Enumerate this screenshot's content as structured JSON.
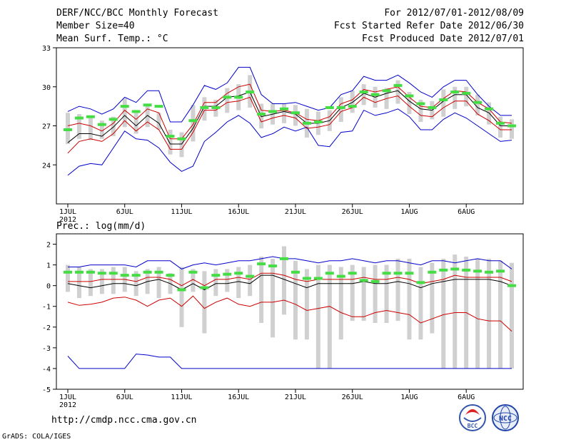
{
  "header": {
    "title": "DERF/NCC/BCC Monthly Forecast",
    "member_size": "Member Size=40",
    "variable": "Mean Surf. Temp.: °C",
    "period": "For 2012/07/01-2012/08/09",
    "started": "Fcst Started Refer Date 2012/06/30",
    "produced": "Fcst Produced Date 2012/07/01"
  },
  "footer": {
    "url": "http://cmdp.ncc.cma.gov.cn",
    "credit": "GrADS: COLA/IGES",
    "logo_bcc": "BCC",
    "logo_ncc": "NCC"
  },
  "colors": {
    "ensemble": "#0000cc",
    "spread": "#cc0000",
    "mean": "#000000",
    "box": "#d0d0d0",
    "obs": "#44dd44"
  },
  "chart_data": [
    {
      "type": "line",
      "title": "Mean Surf. Temp.: °C",
      "x_ticks": [
        "1JUL",
        "6JUL",
        "11JUL",
        "16JUL",
        "21JUL",
        "26JUL",
        "1AUG",
        "6AUG"
      ],
      "x_year": "2012",
      "ylim": [
        21,
        33
      ],
      "y_ticks": [
        "33",
        "30",
        "27",
        "24"
      ],
      "series": [
        {
          "name": "ensemble max",
          "values": [
            23.2,
            23.9,
            24.1,
            24.0,
            25.3,
            26.6,
            26.0,
            25.9,
            25.3,
            24.2,
            23.5,
            23.9,
            25.8,
            26.5,
            27.3,
            27.8,
            27.2,
            26.1,
            26.4,
            26.9,
            26.6,
            26.9,
            25.5,
            25.4,
            26.5,
            26.6,
            28.2,
            27.8,
            28.0,
            28.3,
            27.7,
            26.7,
            26.7,
            27.5,
            28.0,
            27.6,
            27.0,
            26.4,
            25.8,
            25.9
          ]
        },
        {
          "name": "ensemble max upper",
          "values": [
            28.1,
            28.5,
            28.3,
            27.9,
            28.3,
            29.2,
            28.8,
            29.7,
            29.7,
            27.3,
            27.3,
            28.6,
            30.1,
            29.8,
            30.3,
            31.5,
            31.5,
            29.4,
            28.7,
            28.7,
            28.8,
            28.5,
            28.2,
            28.4,
            29.4,
            29.7,
            30.8,
            30.5,
            30.5,
            30.9,
            30.3,
            29.6,
            29.2,
            30.0,
            30.5,
            30.5,
            29.4,
            28.5,
            27.8,
            27.8
          ]
        },
        {
          "name": "spread high",
          "values": [
            27.0,
            27.2,
            27.0,
            26.6,
            27.2,
            28.2,
            27.5,
            28.3,
            28.0,
            26.0,
            26.0,
            27.1,
            28.8,
            28.8,
            29.5,
            30.0,
            30.2,
            28.2,
            28.1,
            28.2,
            28.0,
            27.5,
            27.4,
            27.7,
            28.7,
            29.0,
            29.8,
            29.6,
            29.8,
            30.0,
            29.2,
            28.5,
            28.4,
            29.1,
            29.7,
            29.6,
            28.8,
            28.3,
            27.3,
            27.2
          ]
        },
        {
          "name": "ensemble mean",
          "values": [
            25.7,
            26.4,
            26.4,
            26.2,
            26.9,
            27.8,
            27.0,
            27.8,
            27.2,
            25.6,
            25.6,
            26.8,
            28.5,
            28.5,
            29.2,
            29.3,
            29.6,
            27.7,
            27.9,
            28.1,
            27.9,
            27.2,
            27.2,
            27.4,
            28.4,
            28.8,
            29.5,
            29.2,
            29.5,
            29.7,
            28.9,
            28.3,
            28.2,
            28.9,
            29.4,
            29.4,
            28.4,
            28.0,
            27.0,
            27.0
          ]
        },
        {
          "name": "spread low",
          "values": [
            24.9,
            25.8,
            26.0,
            25.8,
            26.4,
            27.4,
            26.6,
            27.3,
            26.7,
            25.2,
            25.2,
            26.5,
            28.2,
            28.2,
            28.8,
            28.9,
            29.2,
            27.3,
            27.6,
            27.8,
            27.6,
            26.8,
            26.9,
            27.1,
            28.1,
            28.4,
            29.2,
            28.8,
            29.1,
            29.3,
            28.5,
            27.8,
            27.7,
            28.4,
            28.9,
            28.9,
            27.9,
            27.4,
            26.7,
            26.7
          ]
        },
        {
          "name": "observed",
          "values": [
            26.7,
            27.6,
            27.7,
            27.1,
            27.5,
            28.5,
            28.1,
            28.6,
            28.5,
            26.2,
            26.0,
            27.4,
            28.4,
            28.4,
            29.2,
            29.2,
            29.6,
            27.9,
            28.1,
            28.3,
            28.0,
            27.2,
            27.3,
            28.4,
            28.4,
            28.5,
            29.6,
            29.4,
            29.7,
            30.1,
            29.3,
            28.7,
            28.4,
            29.0,
            29.6,
            29.5,
            28.8,
            28.3,
            27.2,
            27.0
          ]
        }
      ],
      "box_low": [
        25.6,
        26.0,
        25.9,
        26.0,
        26.2,
        26.9,
        26.4,
        26.9,
        26.7,
        24.8,
        24.6,
        25.8,
        27.4,
        27.7,
        28.0,
        28.2,
        28.4,
        26.8,
        27.1,
        27.2,
        27.0,
        26.1,
        26.3,
        26.6,
        27.3,
        28.0,
        28.6,
        28.4,
        28.3,
        28.7,
        27.9,
        27.3,
        27.5,
        27.7,
        28.3,
        28.5,
        27.8,
        27.1,
        26.1,
        26.0
      ],
      "box_high": [
        28.0,
        27.9,
        27.7,
        27.4,
        27.7,
        29.1,
        28.2,
        28.7,
        28.0,
        26.7,
        26.5,
        28.6,
        29.2,
        29.0,
        29.9,
        30.2,
        30.9,
        28.7,
        28.7,
        28.7,
        28.6,
        28.3,
        28.1,
        28.2,
        29.2,
        29.7,
        30.2,
        30.0,
        29.9,
        30.5,
        29.6,
        29.0,
        28.9,
        29.8,
        30.0,
        30.0,
        29.4,
        28.8,
        27.7,
        27.5
      ]
    },
    {
      "type": "line",
      "title": "Prec.: log(mm/d)",
      "x_ticks": [
        "1JUL",
        "6JUL",
        "11JUL",
        "16JUL",
        "21JUL",
        "26JUL",
        "1AUG",
        "6AUG"
      ],
      "x_year": "2012",
      "ylim": [
        -5,
        2.5
      ],
      "y_ticks": [
        "2",
        "1",
        "0",
        "-1",
        "-2",
        "-3",
        "-4",
        "-5"
      ],
      "series": [
        {
          "name": "ensemble max",
          "values": [
            0.9,
            0.9,
            1.0,
            1.0,
            1.0,
            1.0,
            0.9,
            1.2,
            1.2,
            1.2,
            0.8,
            1.0,
            1.1,
            1.0,
            1.1,
            1.2,
            1.2,
            1.3,
            1.4,
            1.3,
            1.3,
            1.2,
            1.1,
            1.2,
            1.2,
            1.3,
            1.2,
            1.1,
            1.2,
            1.2,
            1.1,
            1.0,
            1.2,
            1.2,
            1.1,
            1.2,
            1.3,
            1.2,
            1.2,
            0.8
          ]
        },
        {
          "name": "ensemble min",
          "values": [
            -3.4,
            -4.0,
            -4.0,
            -4.0,
            -4.0,
            -4.0,
            -3.3,
            -3.35,
            -3.45,
            -3.45,
            -4.0,
            -4.0,
            -4.0,
            -4.0,
            -4.0,
            -4.0,
            -4.0,
            -4.0,
            -4.0,
            -4.0,
            -4.0,
            -4.0,
            -4.0,
            -4.0,
            -4.0,
            -4.0,
            -4.0,
            -4.0,
            -4.0,
            -4.0,
            -4.0,
            -4.0,
            -4.0,
            -4.0,
            -4.0,
            -4.0,
            -4.0,
            -4.0,
            -4.0,
            -4.0
          ]
        },
        {
          "name": "spread high",
          "values": [
            0.2,
            0.2,
            0.2,
            0.3,
            0.3,
            0.3,
            0.2,
            0.4,
            0.4,
            0.3,
            0.0,
            0.3,
            0.0,
            0.3,
            0.3,
            0.4,
            0.3,
            0.6,
            0.6,
            0.5,
            0.3,
            0.2,
            0.3,
            0.3,
            0.3,
            0.3,
            0.4,
            0.3,
            0.3,
            0.4,
            0.3,
            0.1,
            0.2,
            0.3,
            0.5,
            0.4,
            0.4,
            0.4,
            0.4,
            0.2
          ]
        },
        {
          "name": "ensemble mean",
          "values": [
            0.1,
            0.0,
            -0.1,
            0.0,
            0.1,
            0.1,
            0.0,
            0.2,
            0.3,
            0.1,
            -0.2,
            0.1,
            -0.2,
            0.1,
            0.1,
            0.2,
            0.1,
            0.5,
            0.5,
            0.3,
            0.1,
            -0.1,
            0.1,
            0.1,
            0.1,
            0.1,
            0.2,
            0.1,
            0.1,
            0.2,
            0.1,
            -0.1,
            0.1,
            0.2,
            0.3,
            0.3,
            0.3,
            0.3,
            0.2,
            0.0
          ]
        },
        {
          "name": "spread low",
          "values": [
            -0.8,
            -0.95,
            -0.9,
            -0.8,
            -0.6,
            -0.55,
            -0.7,
            -1.0,
            -0.7,
            -0.6,
            -1.0,
            -0.5,
            -1.1,
            -0.8,
            -0.6,
            -0.9,
            -1.0,
            -0.8,
            -0.8,
            -0.7,
            -0.9,
            -1.2,
            -1.1,
            -1.0,
            -1.3,
            -1.5,
            -1.5,
            -1.3,
            -1.2,
            -1.3,
            -1.4,
            -1.8,
            -1.6,
            -1.4,
            -1.3,
            -1.3,
            -1.6,
            -1.7,
            -1.7,
            -2.2
          ]
        },
        {
          "name": "observed",
          "values": [
            0.65,
            0.65,
            0.65,
            0.6,
            0.6,
            0.5,
            0.5,
            0.65,
            0.65,
            0.5,
            -0.2,
            0.65,
            -0.1,
            0.5,
            0.55,
            0.6,
            0.45,
            1.05,
            0.95,
            1.3,
            0.65,
            0.35,
            0.35,
            0.6,
            0.45,
            0.6,
            0.25,
            0.2,
            0.6,
            0.6,
            0.6,
            0.15,
            0.65,
            0.75,
            0.8,
            0.75,
            0.7,
            0.65,
            0.7,
            0.0
          ]
        }
      ],
      "box_low": [
        -0.3,
        -0.6,
        -0.5,
        -0.4,
        -0.4,
        -0.3,
        -0.5,
        -0.4,
        -0.6,
        -0.4,
        -2.0,
        -0.3,
        -2.3,
        -0.5,
        -0.3,
        -0.6,
        -0.5,
        -1.8,
        -2.5,
        -1.4,
        -2.6,
        -2.6,
        -4.0,
        -4.0,
        -2.6,
        -1.7,
        -1.7,
        -1.8,
        -1.8,
        -1.7,
        -2.6,
        -2.6,
        -2.3,
        -4.0,
        -4.0,
        -4.0,
        -4.0,
        -4.0,
        -4.0,
        -4.0
      ],
      "box_high": [
        1.0,
        0.9,
        0.8,
        0.8,
        0.9,
        0.9,
        0.7,
        0.8,
        0.9,
        0.6,
        0.9,
        0.8,
        0.7,
        0.8,
        0.8,
        0.9,
        1.0,
        1.4,
        1.3,
        1.9,
        1.2,
        0.8,
        1.0,
        1.0,
        0.9,
        1.0,
        0.9,
        1.0,
        1.0,
        1.3,
        1.3,
        0.9,
        1.1,
        1.3,
        1.5,
        1.4,
        1.3,
        1.3,
        1.2,
        1.1
      ]
    }
  ]
}
